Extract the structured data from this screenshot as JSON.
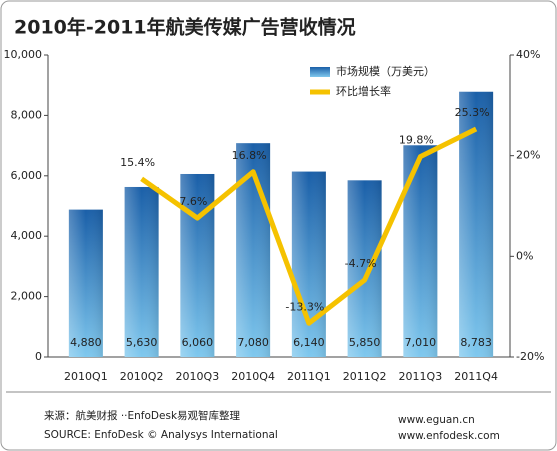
{
  "chart_data": {
    "type": "bar",
    "title": "2010年-2011年航美传媒广告营收情况",
    "categories": [
      "2010Q1",
      "2010Q2",
      "2010Q3",
      "2010Q4",
      "2011Q1",
      "2011Q2",
      "2011Q3",
      "2011Q4"
    ],
    "series": [
      {
        "name": "市场规模（万美元）",
        "color": "#1f6fb8",
        "type": "bar",
        "values": [
          4880,
          5630,
          6060,
          7080,
          6140,
          5850,
          7010,
          8783
        ],
        "value_labels": [
          "4,880",
          "5,630",
          "6,060",
          "7,080",
          "6,140",
          "5,850",
          "7,010",
          "8,783"
        ]
      },
      {
        "name": "环比增长率",
        "color": "#f5c200",
        "type": "line",
        "axis": "y2",
        "values": [
          null,
          15.4,
          7.6,
          16.8,
          -13.3,
          -4.7,
          19.8,
          25.3
        ],
        "value_labels": [
          null,
          "15.4%",
          "7.6%",
          "16.8%",
          "-13.3%",
          "-4.7%",
          "19.8%",
          "25.3%"
        ]
      }
    ],
    "ylim": [
      0,
      10000
    ],
    "yticks": [
      0,
      {
        "value": 2000,
        "label": "2,000"
      },
      {
        "value": 4000,
        "label": "4,000"
      },
      {
        "value": 6000,
        "label": "6,000"
      },
      {
        "value": 8000,
        "label": "8,000"
      },
      {
        "value": 10000,
        "label": "10,000"
      }
    ],
    "y2lim": [
      -20,
      40
    ],
    "y2ticks": [
      {
        "value": -20,
        "label": "-20%"
      },
      {
        "value": 0,
        "label": "0%"
      },
      {
        "value": 20,
        "label": "20%"
      },
      {
        "value": 40,
        "label": "40%"
      }
    ],
    "grid": false,
    "legend": "top-right"
  },
  "footer": {
    "source_cn": "来源：航美财报 ··EnfoDesk易观智库整理",
    "source_en": "SOURCE: EnfoDesk © Analysys International",
    "url1": "www.eguan.cn",
    "url2": "www.enfodesk.com"
  }
}
